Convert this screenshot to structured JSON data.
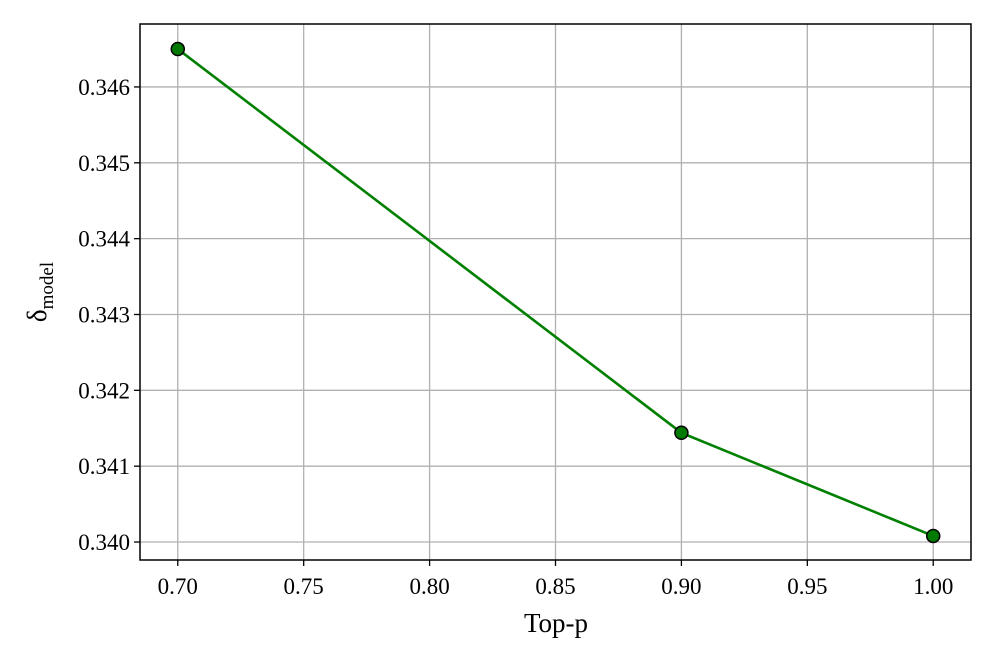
{
  "chart_data": {
    "type": "line",
    "xlabel": "Top-p",
    "ylabel": {
      "symbol": "δ",
      "subscript": "model"
    },
    "x": [
      0.7,
      0.9,
      1.0
    ],
    "series": [
      {
        "color": "#008000",
        "marker_color": "#007a00",
        "values": [
          0.3465,
          0.34144,
          0.34008
        ]
      }
    ],
    "xlim": [
      0.685,
      1.015
    ],
    "ylim": [
      0.339763,
      0.34683
    ],
    "xticks": [
      {
        "value": 0.7,
        "label": "0.70"
      },
      {
        "value": 0.75,
        "label": "0.75"
      },
      {
        "value": 0.8,
        "label": "0.80"
      },
      {
        "value": 0.85,
        "label": "0.85"
      },
      {
        "value": 0.9,
        "label": "0.90"
      },
      {
        "value": 0.95,
        "label": "0.95"
      },
      {
        "value": 1.0,
        "label": "1.00"
      }
    ],
    "yticks": [
      {
        "value": 0.34,
        "label": "0.340"
      },
      {
        "value": 0.341,
        "label": "0.341"
      },
      {
        "value": 0.342,
        "label": "0.342"
      },
      {
        "value": 0.343,
        "label": "0.343"
      },
      {
        "value": 0.344,
        "label": "0.344"
      },
      {
        "value": 0.345,
        "label": "0.345"
      },
      {
        "value": 0.346,
        "label": "0.346"
      }
    ],
    "grid": true
  }
}
